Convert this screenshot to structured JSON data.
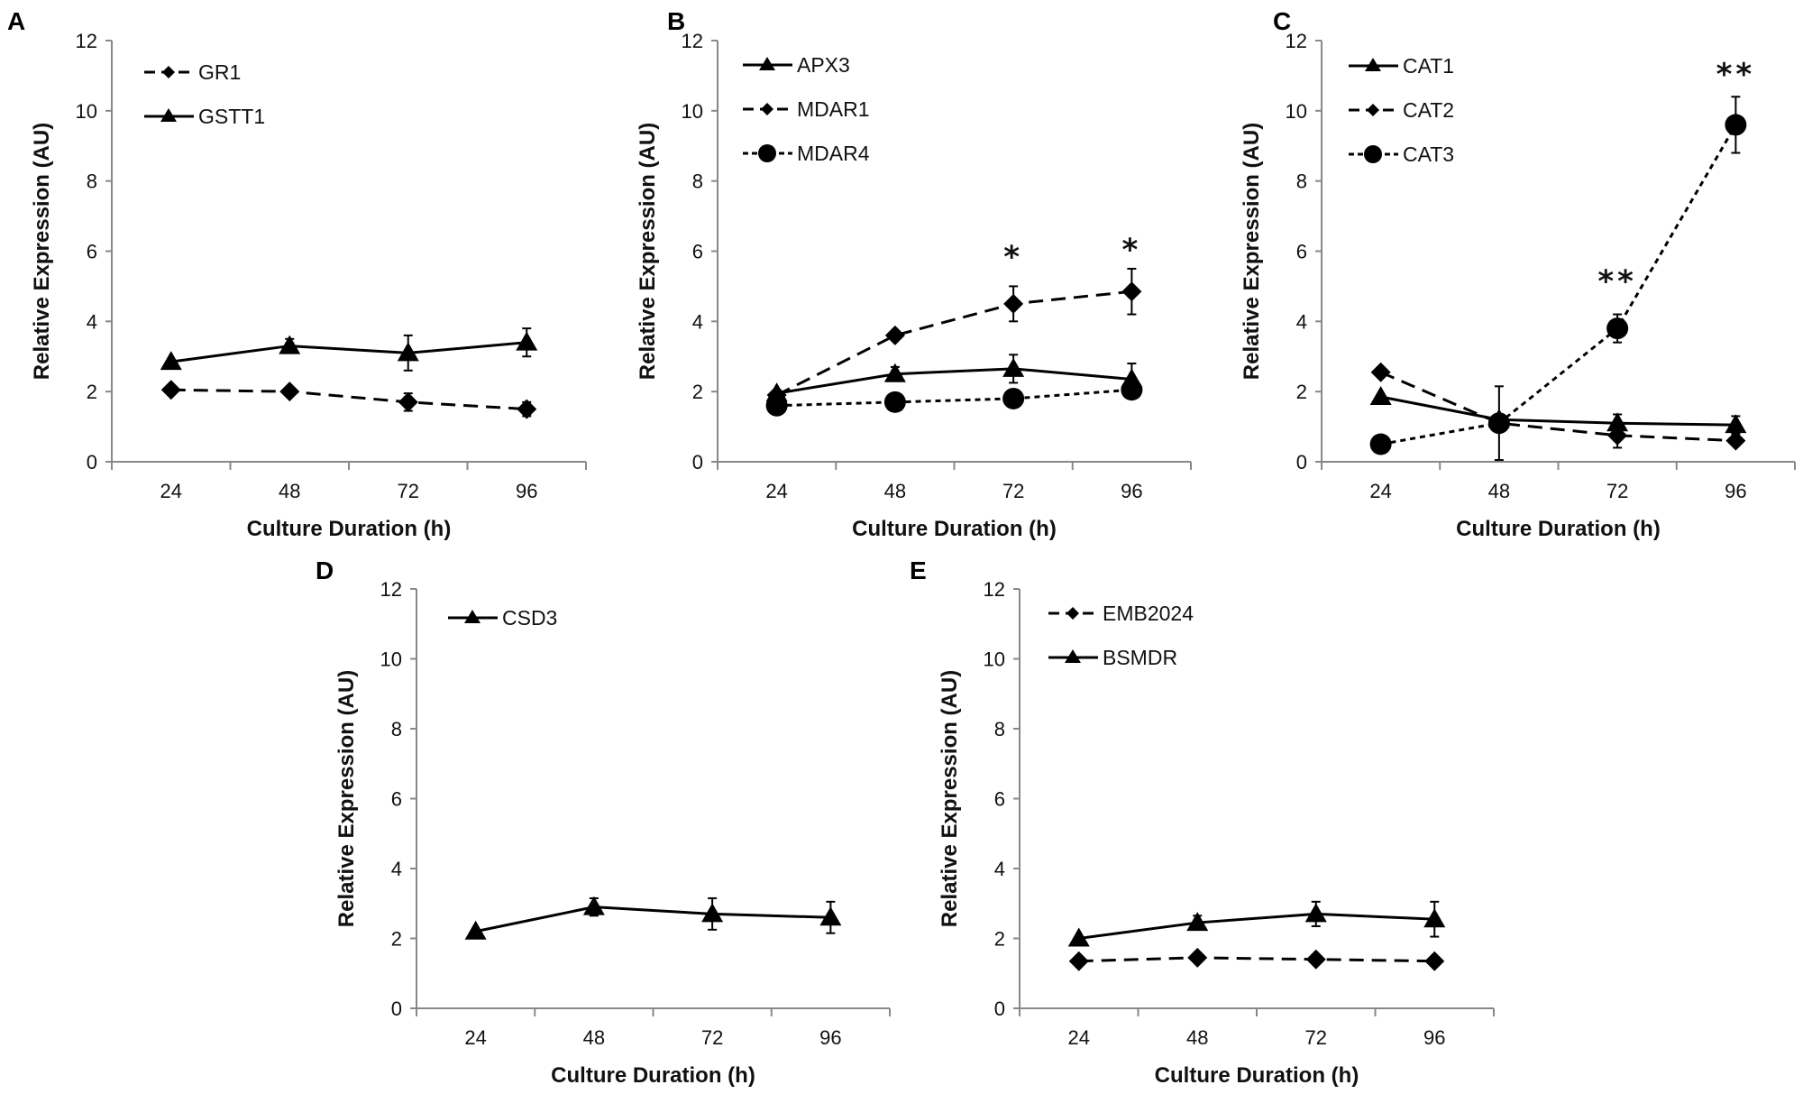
{
  "chart_data": [
    {
      "type": "line",
      "panel": "A",
      "categories": [
        "24",
        "48",
        "72",
        "96"
      ],
      "xlabel": "Culture Duration (h)",
      "ylabel": "Relative Expression (AU)",
      "ylim": [
        0,
        12
      ],
      "yticks": [
        "0",
        "2",
        "4",
        "6",
        "8",
        "10",
        "12"
      ],
      "grid": false,
      "legend": "top-left",
      "series": [
        {
          "name": "GR1",
          "style": "dashed",
          "marker": "diamond",
          "values": [
            2.05,
            2.0,
            1.7,
            1.5
          ],
          "errors": [
            0,
            0,
            0.25,
            0.2
          ]
        },
        {
          "name": "GSTT1",
          "style": "solid",
          "marker": "triangle",
          "values": [
            2.85,
            3.3,
            3.1,
            3.4
          ],
          "errors": [
            0,
            0.2,
            0.5,
            0.4
          ]
        }
      ],
      "annotations": []
    },
    {
      "type": "line",
      "panel": "B",
      "categories": [
        "24",
        "48",
        "72",
        "96"
      ],
      "xlabel": "Culture Duration (h)",
      "ylabel": "Relative Expression (AU)",
      "ylim": [
        0,
        12
      ],
      "yticks": [
        "0",
        "2",
        "4",
        "6",
        "8",
        "10",
        "12"
      ],
      "grid": false,
      "legend": "top-left",
      "series": [
        {
          "name": "APX3",
          "style": "solid",
          "marker": "triangle",
          "values": [
            1.95,
            2.5,
            2.65,
            2.35
          ],
          "errors": [
            0,
            0.2,
            0.4,
            0.45
          ]
        },
        {
          "name": "MDAR1",
          "style": "dashed",
          "marker": "diamond",
          "values": [
            1.9,
            3.6,
            4.5,
            4.85
          ],
          "errors": [
            0,
            0,
            0.5,
            0.65
          ]
        },
        {
          "name": "MDAR4",
          "style": "dotted",
          "marker": "circle",
          "values": [
            1.6,
            1.7,
            1.8,
            2.05
          ],
          "errors": [
            0,
            0,
            0,
            0
          ]
        }
      ],
      "annotations": [
        {
          "x": "72",
          "y": 5.9,
          "text": "*"
        },
        {
          "x": "96",
          "y": 6.1,
          "text": "*"
        }
      ]
    },
    {
      "type": "line",
      "panel": "C",
      "categories": [
        "24",
        "48",
        "72",
        "96"
      ],
      "xlabel": "Culture Duration (h)",
      "ylabel": "Relative Expression (AU)",
      "ylim": [
        0,
        12
      ],
      "yticks": [
        "0",
        "2",
        "4",
        "6",
        "8",
        "10",
        "12"
      ],
      "grid": false,
      "legend": "top-left",
      "series": [
        {
          "name": "CAT1",
          "style": "solid",
          "marker": "triangle",
          "values": [
            1.85,
            1.2,
            1.1,
            1.05
          ],
          "errors": [
            0,
            0,
            0.25,
            0.25
          ]
        },
        {
          "name": "CAT2",
          "style": "dashed",
          "marker": "diamond",
          "values": [
            2.55,
            1.1,
            0.75,
            0.6
          ],
          "errors": [
            0,
            0,
            0.35,
            0
          ]
        },
        {
          "name": "CAT3",
          "style": "dotted",
          "marker": "circle",
          "values": [
            0.5,
            1.1,
            3.8,
            9.6
          ],
          "errors": [
            0,
            1.05,
            0.4,
            0.8
          ]
        }
      ],
      "annotations": [
        {
          "x": "72",
          "y": 5.2,
          "text": "**"
        },
        {
          "x": "96",
          "y": 11.1,
          "text": "**"
        }
      ]
    },
    {
      "type": "line",
      "panel": "D",
      "categories": [
        "24",
        "48",
        "72",
        "96"
      ],
      "xlabel": "Culture Duration (h)",
      "ylabel": "Relative Expression (AU)",
      "ylim": [
        0,
        12
      ],
      "yticks": [
        "0",
        "2",
        "4",
        "6",
        "8",
        "10",
        "12"
      ],
      "grid": false,
      "legend": "top-left",
      "series": [
        {
          "name": "CSD3",
          "style": "solid",
          "marker": "triangle",
          "values": [
            2.2,
            2.9,
            2.7,
            2.6
          ],
          "errors": [
            0,
            0.25,
            0.45,
            0.45
          ]
        }
      ],
      "annotations": []
    },
    {
      "type": "line",
      "panel": "E",
      "categories": [
        "24",
        "48",
        "72",
        "96"
      ],
      "xlabel": "Culture Duration (h)",
      "ylabel": "Relative Expression (AU)",
      "ylim": [
        0,
        12
      ],
      "yticks": [
        "0",
        "2",
        "4",
        "6",
        "8",
        "10",
        "12"
      ],
      "grid": false,
      "legend": "top-left",
      "series": [
        {
          "name": "EMB2024",
          "style": "dashed",
          "marker": "diamond",
          "values": [
            1.35,
            1.45,
            1.4,
            1.35
          ],
          "errors": [
            0,
            0,
            0,
            0
          ]
        },
        {
          "name": "BSMDR",
          "style": "solid",
          "marker": "triangle",
          "values": [
            2.0,
            2.45,
            2.7,
            2.55
          ],
          "errors": [
            0,
            0.2,
            0.35,
            0.5
          ]
        }
      ],
      "annotations": []
    }
  ]
}
